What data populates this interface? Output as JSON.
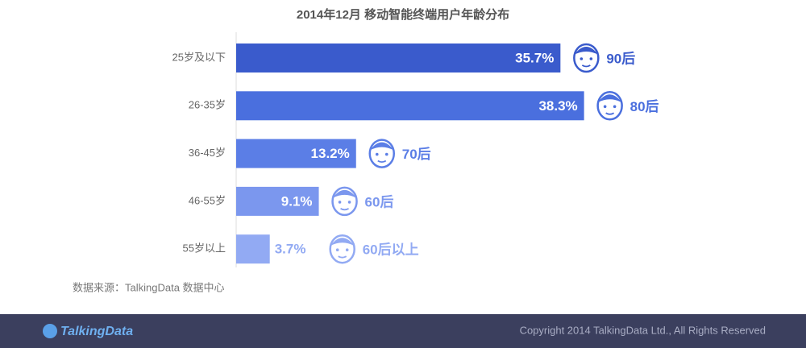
{
  "chart_data": {
    "type": "bar",
    "orientation": "horizontal",
    "title": "2014年12月 移动智能终端用户年龄分布",
    "categories": [
      "25岁及以下",
      "26-35岁",
      "36-45岁",
      "46-55岁",
      "55岁以上"
    ],
    "values": [
      35.7,
      38.3,
      13.2,
      9.1,
      3.7
    ],
    "value_labels": [
      "35.7%",
      "38.3%",
      "13.2%",
      "9.1%",
      "3.7%"
    ],
    "annotations": [
      "90后",
      "80后",
      "70后",
      "60后",
      "60后以上"
    ],
    "colors": [
      "#3a5bcc",
      "#4a6fde",
      "#5b7ee6",
      "#7b97ee",
      "#92aaf3"
    ]
  },
  "source": "数据来源：TalkingData 数据中心",
  "footer": {
    "logo": "TalkingData",
    "copyright": "Copyright 2014 TalkingData Ltd., All Rights Reserved"
  }
}
